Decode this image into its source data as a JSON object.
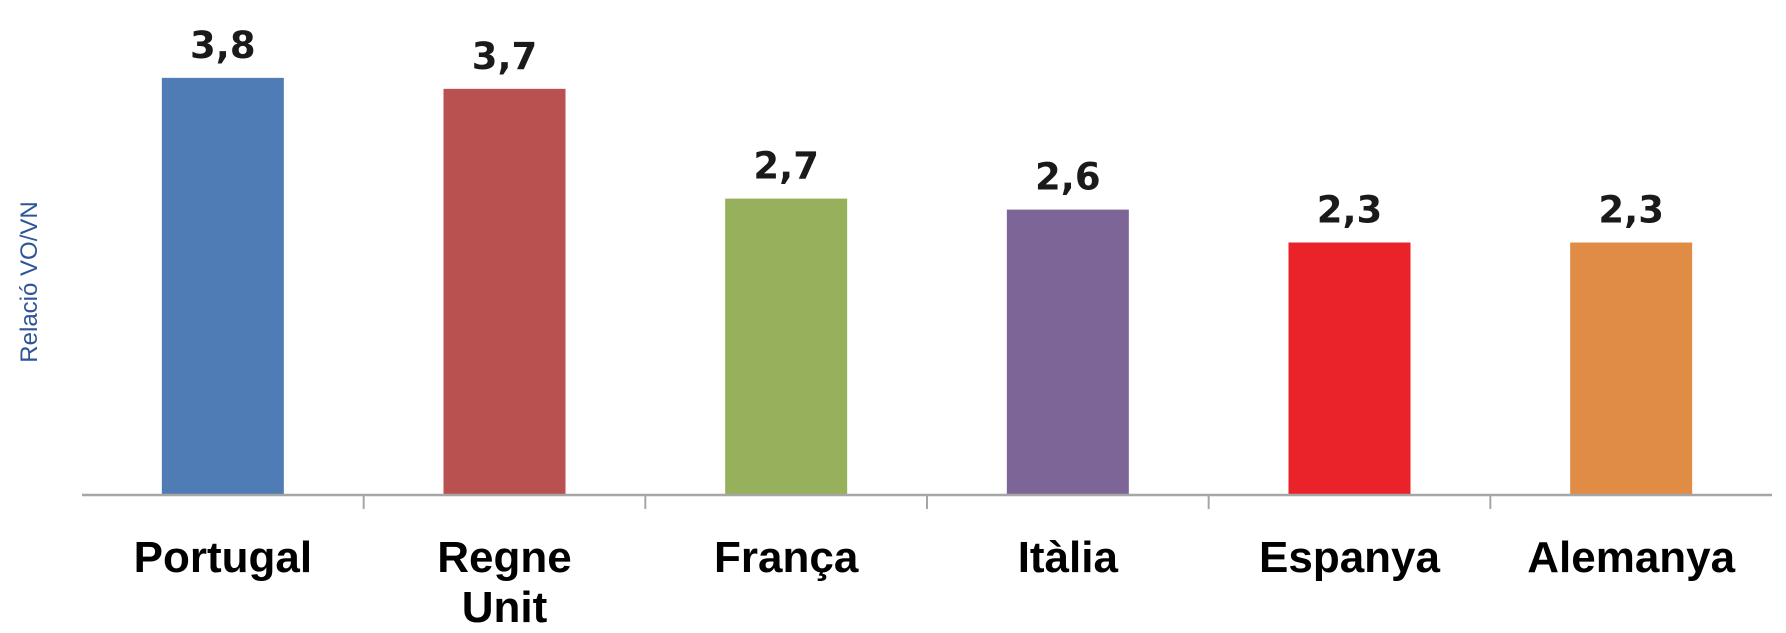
{
  "chart_data": {
    "type": "bar",
    "ylabel": "Relació VO/VN",
    "xlabel": "",
    "ylim": [
      0,
      4.4
    ],
    "categories": [
      "Portugal",
      "Regne Unit",
      "França",
      "Itàlia",
      "Espanya",
      "Alemanya"
    ],
    "values": [
      3.8,
      3.7,
      2.7,
      2.6,
      2.3,
      2.3
    ],
    "value_labels": [
      "3,8",
      "3,7",
      "2,7",
      "2,6",
      "2,3",
      "2,3"
    ],
    "colors": [
      "#4f7cb5",
      "#b8514f",
      "#96b05b",
      "#7e6597",
      "#ea2229",
      "#e08c45"
    ],
    "grid": false,
    "legend": "none"
  }
}
